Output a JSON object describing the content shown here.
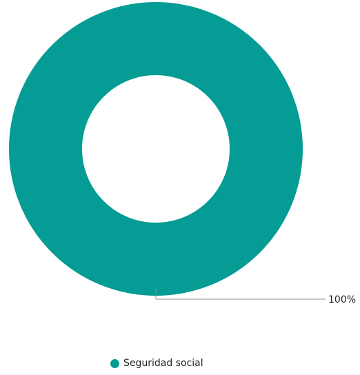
{
  "chart_data": {
    "type": "pie",
    "variant": "donut",
    "slices": [
      {
        "label": "Seguridad social",
        "value": 100,
        "percent_label": "100%",
        "color": "#049c94"
      }
    ],
    "legend_position": "bottom",
    "data_label_placement": "outside-right-with-leader-line"
  },
  "legend": {
    "items": [
      {
        "label": "Seguridad social",
        "color": "#049c94"
      }
    ]
  }
}
